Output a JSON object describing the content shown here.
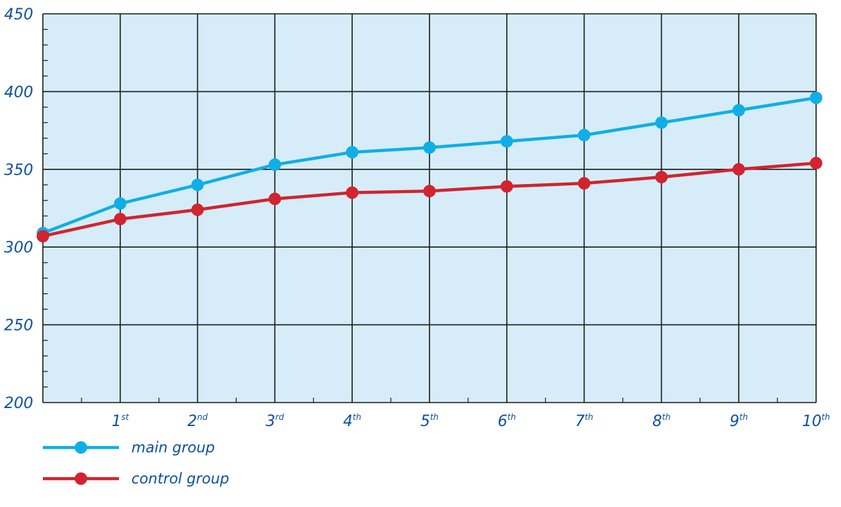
{
  "chart_data": {
    "type": "line",
    "title": "",
    "xlabel": "",
    "ylabel": "",
    "ylim": [
      200,
      450
    ],
    "yticks": [
      {
        "label": "450",
        "value": 450
      },
      {
        "label": "400",
        "value": 400
      },
      {
        "label": "350",
        "value": 350
      },
      {
        "label": "300",
        "value": 300
      },
      {
        "label": "250",
        "value": 250
      },
      {
        "label": "200",
        "value": 200
      }
    ],
    "x": [
      0,
      1,
      2,
      3,
      4,
      5,
      6,
      7,
      8,
      9,
      10
    ],
    "categories": [
      {
        "num": "1",
        "suffix": "st"
      },
      {
        "num": "2",
        "suffix": "nd"
      },
      {
        "num": "3",
        "suffix": "rd"
      },
      {
        "num": "4",
        "suffix": "th"
      },
      {
        "num": "5",
        "suffix": "th"
      },
      {
        "num": "6",
        "suffix": "th"
      },
      {
        "num": "7",
        "suffix": "th"
      },
      {
        "num": "8",
        "suffix": "th"
      },
      {
        "num": "9",
        "suffix": "th"
      },
      {
        "num": "10",
        "suffix": "th"
      }
    ],
    "grid": true,
    "legend_position": "bottom-left",
    "plot_background": "#d6edf9",
    "grid_color": "#1a1a1a",
    "tick_color": "#0e4fa0",
    "series": [
      {
        "name": "main group",
        "color": "#10aee6",
        "values": [
          309,
          328,
          340,
          353,
          361,
          364,
          368,
          372,
          380,
          388,
          396
        ]
      },
      {
        "name": "control group",
        "color": "#d1242f",
        "values": [
          307,
          318,
          324,
          331,
          335,
          336,
          339,
          341,
          345,
          350,
          354
        ]
      }
    ]
  }
}
